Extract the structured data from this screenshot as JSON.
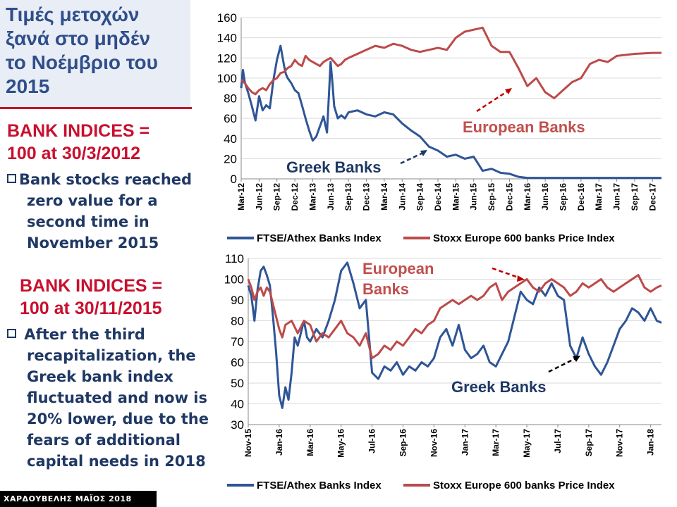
{
  "slide": {
    "title_lines": [
      "Τιμές μετοχών",
      "ξανά στο μηδέν",
      "το Νοέμβριο του",
      "2015"
    ],
    "index1_lines": [
      "BANK INDICES =",
      "100  at  30/3/2012"
    ],
    "bullet1_lines": [
      "Bank stocks reached",
      "zero value for a",
      "second time in",
      "November 2015"
    ],
    "index2_lines": [
      "BANK INDICES =",
      "100  at 30/11/2015"
    ],
    "bullet2_lines": [
      " After the third",
      "recapitalization, the",
      "Greek bank index",
      "fluctuated and now is",
      "20% lower, due to the",
      "fears of additional",
      "capital needs in 2018"
    ],
    "footer": "ΧΑΡΔΟΥΒΕΛΗΣ ΜΑΪΟΣ 2018"
  },
  "colors": {
    "greek": "#2e5597",
    "european": "#bd4a4a",
    "accent_red": "#c8102e",
    "title_blue": "#2f4e8a"
  },
  "chart_data": [
    {
      "type": "line",
      "ylim": [
        0,
        160
      ],
      "yticks": [
        0,
        20,
        40,
        60,
        80,
        100,
        120,
        140,
        160
      ],
      "xticks": [
        "Mar-12",
        "Jun-12",
        "Sep-12",
        "Dec-12",
        "Mar-13",
        "Jun-13",
        "Sep-13",
        "Dec-13",
        "Mar-14",
        "Jun-14",
        "Sep-14",
        "Dec-14",
        "Mar-15",
        "Jun-15",
        "Sep-15",
        "Dec-15",
        "Mar-16",
        "Jun-16",
        "Sep-16",
        "Dec-16",
        "Mar-17",
        "Jun-17",
        "Sep-17",
        "Dec-17"
      ],
      "x_range": [
        0,
        23.5
      ],
      "annotations": {
        "greek": "Greek Banks",
        "european": "European Banks"
      },
      "series": [
        {
          "name": "FTSE/Athex Banks Index",
          "x": [
            0,
            0.1,
            0.2,
            0.4,
            0.6,
            0.8,
            1.0,
            1.2,
            1.4,
            1.6,
            1.8,
            2.0,
            2.2,
            2.4,
            2.5,
            2.6,
            2.8,
            3.0,
            3.2,
            3.4,
            3.6,
            3.8,
            4.0,
            4.2,
            4.4,
            4.6,
            4.8,
            5.0,
            5.1,
            5.2,
            5.4,
            5.6,
            5.8,
            6.0,
            6.5,
            7.0,
            7.5,
            8.0,
            8.5,
            9.0,
            9.5,
            10.0,
            10.5,
            11.0,
            11.5,
            12.0,
            12.5,
            13.0,
            13.5,
            14.0,
            14.5,
            15.0,
            15.5,
            16,
            17,
            18,
            19,
            20,
            21,
            22,
            23,
            23.5
          ],
          "values": [
            90,
            108,
            96,
            85,
            72,
            58,
            82,
            68,
            73,
            70,
            98,
            118,
            132,
            112,
            104,
            100,
            95,
            88,
            85,
            73,
            60,
            48,
            38,
            42,
            52,
            62,
            46,
            116,
            96,
            72,
            60,
            63,
            60,
            66,
            68,
            64,
            62,
            66,
            64,
            55,
            48,
            42,
            32,
            28,
            22,
            24,
            20,
            22,
            8,
            10,
            6,
            5,
            2,
            1,
            1,
            1,
            1,
            1,
            1,
            1,
            1,
            1
          ]
        },
        {
          "name": "Stoxx Europe 600 banks Price Index",
          "x": [
            0,
            0.2,
            0.4,
            0.6,
            0.8,
            1.0,
            1.2,
            1.4,
            1.6,
            1.8,
            2.0,
            2.2,
            2.4,
            2.6,
            2.8,
            3.0,
            3.2,
            3.4,
            3.6,
            3.8,
            4.0,
            4.2,
            4.4,
            4.6,
            4.8,
            5.0,
            5.2,
            5.4,
            5.6,
            5.8,
            6.0,
            6.5,
            7.0,
            7.5,
            8.0,
            8.5,
            9.0,
            9.5,
            10.0,
            10.5,
            11.0,
            11.5,
            12.0,
            12.5,
            13.0,
            13.5,
            14.0,
            14.5,
            15.0,
            15.5,
            16.0,
            16.5,
            17.0,
            17.5,
            18.0,
            18.5,
            19.0,
            19.5,
            20.0,
            20.5,
            21,
            22,
            23,
            23.5
          ],
          "values": [
            98,
            95,
            90,
            86,
            84,
            88,
            90,
            88,
            94,
            98,
            100,
            105,
            106,
            110,
            112,
            118,
            114,
            112,
            122,
            118,
            116,
            114,
            112,
            116,
            118,
            120,
            116,
            112,
            114,
            118,
            120,
            124,
            128,
            132,
            130,
            134,
            132,
            128,
            126,
            128,
            130,
            128,
            140,
            146,
            148,
            150,
            132,
            126,
            126,
            110,
            92,
            100,
            86,
            80,
            88,
            96,
            100,
            114,
            118,
            116,
            122,
            124,
            125,
            125
          ]
        }
      ]
    },
    {
      "type": "line",
      "ylim": [
        30,
        110
      ],
      "yticks": [
        30,
        40,
        50,
        60,
        70,
        80,
        90,
        100,
        110
      ],
      "xticks": [
        "Nov-15",
        "Jan-16",
        "Mar-16",
        "May-16",
        "Jul-16",
        "Sep-16",
        "Nov-16",
        "Jan-17",
        "Mar-17",
        "May-17",
        "Jul-17",
        "Sep-17",
        "Nov-17",
        "Jan-18"
      ],
      "x_range": [
        0,
        13.35
      ],
      "annotations": {
        "greek": "Greek Banks",
        "european_line1": "European",
        "european_line2": "Banks"
      },
      "series": [
        {
          "name": "FTSE/Athex Banks Index",
          "x": [
            0,
            0.1,
            0.2,
            0.3,
            0.4,
            0.5,
            0.6,
            0.7,
            0.8,
            0.9,
            1.0,
            1.1,
            1.2,
            1.3,
            1.4,
            1.5,
            1.6,
            1.7,
            1.8,
            1.9,
            2.0,
            2.2,
            2.4,
            2.6,
            2.8,
            3.0,
            3.2,
            3.4,
            3.6,
            3.8,
            4.0,
            4.2,
            4.4,
            4.6,
            4.8,
            5.0,
            5.2,
            5.4,
            5.6,
            5.8,
            6.0,
            6.2,
            6.4,
            6.6,
            6.8,
            7.0,
            7.2,
            7.4,
            7.6,
            7.8,
            8.0,
            8.2,
            8.4,
            8.6,
            8.8,
            9.0,
            9.2,
            9.4,
            9.6,
            9.8,
            10.0,
            10.2,
            10.4,
            10.6,
            10.8,
            11.0,
            11.2,
            11.4,
            11.6,
            11.8,
            12.0,
            12.2,
            12.4,
            12.6,
            12.8,
            13.0,
            13.2,
            13.35
          ],
          "values": [
            97,
            92,
            80,
            95,
            104,
            106,
            102,
            97,
            82,
            65,
            44,
            38,
            48,
            42,
            55,
            72,
            68,
            74,
            80,
            72,
            70,
            76,
            72,
            80,
            90,
            104,
            108,
            98,
            86,
            90,
            55,
            52,
            58,
            56,
            60,
            54,
            58,
            56,
            60,
            58,
            62,
            72,
            76,
            68,
            78,
            66,
            62,
            64,
            68,
            60,
            58,
            64,
            70,
            82,
            94,
            90,
            88,
            96,
            92,
            98,
            92,
            90,
            68,
            62,
            72,
            64,
            58,
            54,
            60,
            68,
            76,
            80,
            86,
            84,
            80,
            86,
            80,
            79
          ]
        },
        {
          "name": "Stoxx Europe 600 banks Price Index",
          "x": [
            0,
            0.1,
            0.2,
            0.3,
            0.4,
            0.5,
            0.6,
            0.7,
            0.8,
            0.9,
            1.0,
            1.1,
            1.2,
            1.4,
            1.6,
            1.8,
            2.0,
            2.2,
            2.4,
            2.6,
            2.8,
            3.0,
            3.2,
            3.4,
            3.6,
            3.8,
            4.0,
            4.2,
            4.4,
            4.6,
            4.8,
            5.0,
            5.2,
            5.4,
            5.6,
            5.8,
            6.0,
            6.2,
            6.4,
            6.6,
            6.8,
            7.0,
            7.2,
            7.4,
            7.6,
            7.8,
            8.0,
            8.2,
            8.4,
            8.6,
            8.8,
            9.0,
            9.2,
            9.4,
            9.6,
            9.8,
            10.0,
            10.2,
            10.4,
            10.6,
            10.8,
            11.0,
            11.2,
            11.4,
            11.6,
            11.8,
            12.0,
            12.2,
            12.4,
            12.6,
            12.8,
            13.0,
            13.2,
            13.35
          ],
          "values": [
            100,
            96,
            90,
            94,
            96,
            92,
            96,
            94,
            88,
            82,
            76,
            72,
            78,
            80,
            74,
            80,
            78,
            70,
            74,
            72,
            76,
            80,
            74,
            72,
            68,
            74,
            62,
            64,
            68,
            66,
            70,
            68,
            72,
            76,
            74,
            78,
            80,
            86,
            88,
            90,
            88,
            90,
            92,
            90,
            92,
            96,
            98,
            90,
            94,
            96,
            98,
            100,
            96,
            94,
            98,
            100,
            98,
            96,
            92,
            94,
            98,
            96,
            98,
            100,
            96,
            94,
            96,
            98,
            100,
            102,
            96,
            94,
            96,
            97
          ]
        }
      ]
    }
  ]
}
